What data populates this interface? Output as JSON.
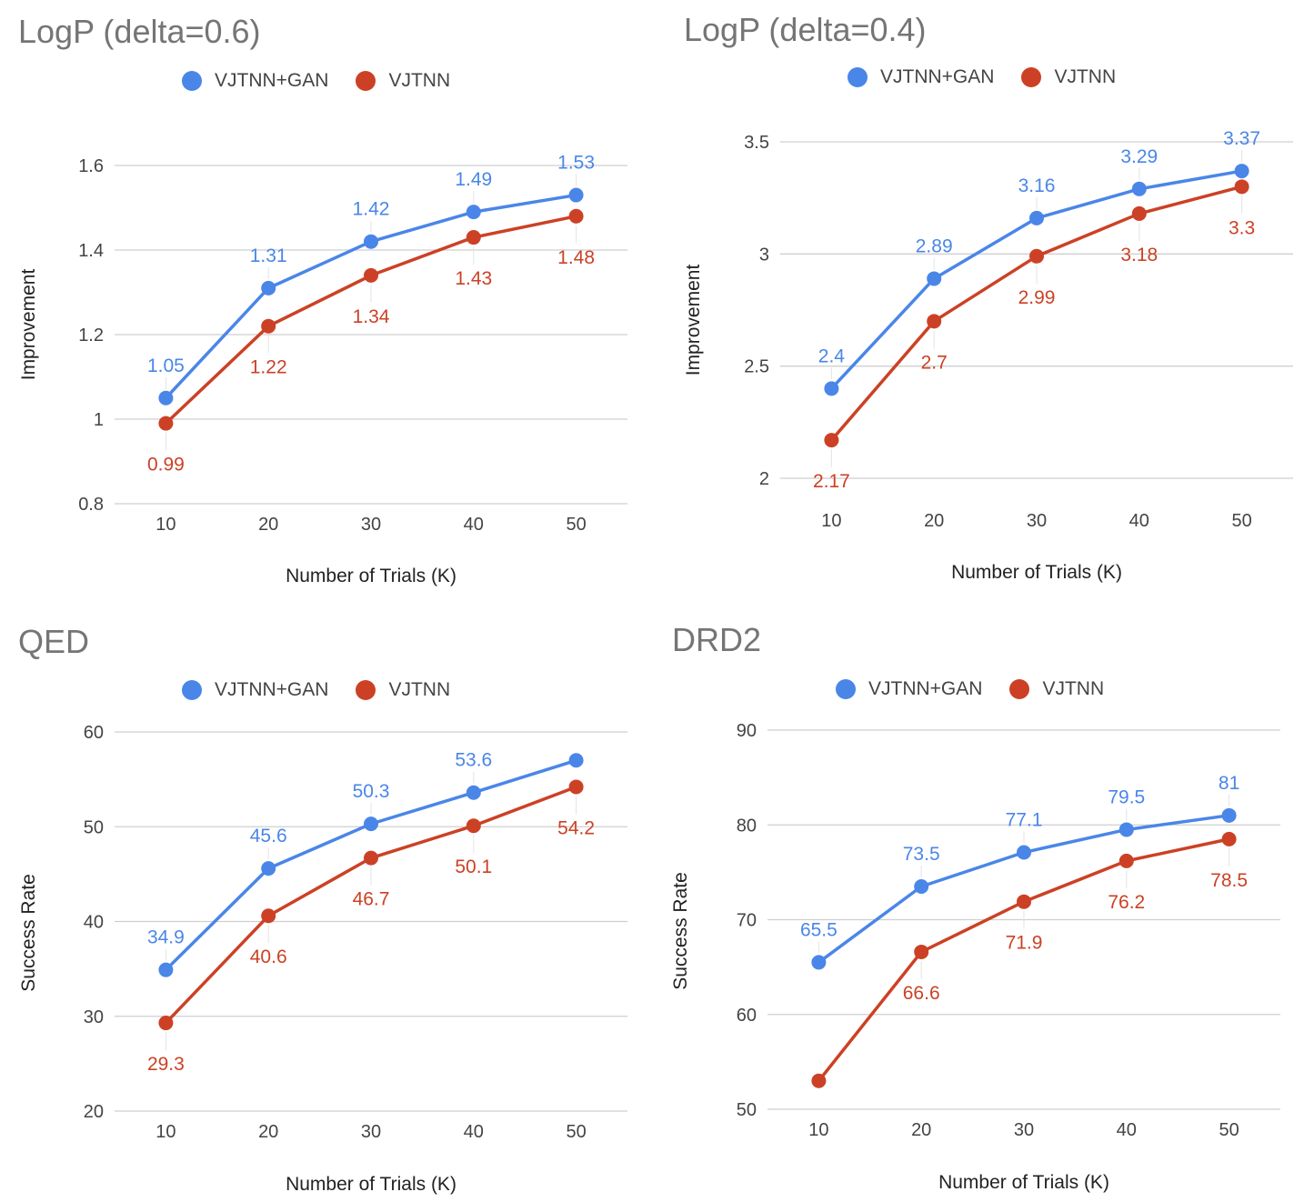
{
  "colors": {
    "series_a": "#4a86e8",
    "series_b": "#cc4125",
    "grid": "#cfcfcf",
    "leader": "#e3e3e3"
  },
  "chart_data": [
    {
      "type": "line",
      "title": "LogP (delta=0.6)",
      "xlabel": "Number of Trials (K)",
      "ylabel": "Improvement",
      "categories": [
        "10",
        "20",
        "30",
        "40",
        "50"
      ],
      "ylim": [
        0.8,
        1.6
      ],
      "yticks": [
        "0.8",
        "1",
        "1.2",
        "1.4",
        "1.6"
      ],
      "grid": true,
      "legend": "top",
      "series": [
        {
          "name": "VJTNN+GAN",
          "values": [
            1.05,
            1.31,
            1.42,
            1.49,
            1.53
          ],
          "labels": [
            "1.05",
            "1.31",
            "1.42",
            "1.49",
            "1.53"
          ]
        },
        {
          "name": "VJTNN",
          "values": [
            0.99,
            1.22,
            1.34,
            1.43,
            1.48
          ],
          "labels": [
            "0.99",
            "1.22",
            "1.34",
            "1.43",
            "1.48"
          ]
        }
      ]
    },
    {
      "type": "line",
      "title": "LogP (delta=0.4)",
      "xlabel": "Number of Trials (K)",
      "ylabel": "Improvement",
      "categories": [
        "10",
        "20",
        "30",
        "40",
        "50"
      ],
      "ylim": [
        2,
        3.5
      ],
      "yticks": [
        "2",
        "2.5",
        "3",
        "3.5"
      ],
      "grid": true,
      "legend": "top",
      "series": [
        {
          "name": "VJTNN+GAN",
          "values": [
            2.4,
            2.89,
            3.16,
            3.29,
            3.37
          ],
          "labels": [
            "2.4",
            "2.89",
            "3.16",
            "3.29",
            "3.37"
          ]
        },
        {
          "name": "VJTNN",
          "values": [
            2.17,
            2.7,
            2.99,
            3.18,
            3.3
          ],
          "labels": [
            "2.17",
            "2.7",
            "2.99",
            "3.18",
            "3.3"
          ]
        }
      ]
    },
    {
      "type": "line",
      "title": "QED",
      "xlabel": "Number of Trials (K)",
      "ylabel": "Success Rate",
      "categories": [
        "10",
        "20",
        "30",
        "40",
        "50"
      ],
      "ylim": [
        20,
        60
      ],
      "yticks": [
        "20",
        "30",
        "40",
        "50",
        "60"
      ],
      "grid": true,
      "legend": "top",
      "series": [
        {
          "name": "VJTNN+GAN",
          "values": [
            34.9,
            45.6,
            50.3,
            53.6,
            57
          ],
          "labels": [
            "34.9",
            "45.6",
            "50.3",
            "53.6",
            ""
          ]
        },
        {
          "name": "VJTNN",
          "values": [
            29.3,
            40.6,
            46.7,
            50.1,
            54.2
          ],
          "labels": [
            "29.3",
            "40.6",
            "46.7",
            "50.1",
            "54.2"
          ]
        }
      ]
    },
    {
      "type": "line",
      "title": "DRD2",
      "xlabel": "Number of Trials (K)",
      "ylabel": "Success Rate",
      "categories": [
        "10",
        "20",
        "30",
        "40",
        "50"
      ],
      "ylim": [
        50,
        90
      ],
      "yticks": [
        "50",
        "60",
        "70",
        "80",
        "90"
      ],
      "grid": true,
      "legend": "top",
      "series": [
        {
          "name": "VJTNN+GAN",
          "values": [
            65.5,
            73.5,
            77.1,
            79.5,
            81
          ],
          "labels": [
            "65.5",
            "73.5",
            "77.1",
            "79.5",
            "81"
          ]
        },
        {
          "name": "VJTNN",
          "values": [
            53,
            66.6,
            71.9,
            76.2,
            78.5
          ],
          "labels": [
            "",
            "66.6",
            "71.9",
            "76.2",
            "78.5"
          ]
        }
      ]
    }
  ]
}
